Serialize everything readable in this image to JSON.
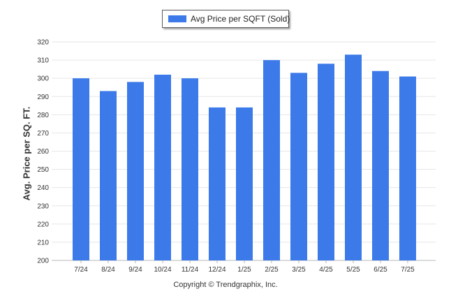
{
  "chart_data": {
    "type": "bar",
    "categories": [
      "7/24",
      "8/24",
      "9/24",
      "10/24",
      "11/24",
      "12/24",
      "1/25",
      "2/25",
      "3/25",
      "4/25",
      "5/25",
      "6/25",
      "7/25"
    ],
    "series": [
      {
        "name": "Avg Price per SQFT (Sold)",
        "values": [
          300,
          293,
          298,
          302,
          300,
          284,
          284,
          310,
          303,
          308,
          313,
          304,
          301
        ]
      }
    ],
    "ylabel": "Avg. Price per SQ. FT.",
    "ylim": [
      200,
      320
    ],
    "yticks": [
      200,
      210,
      220,
      230,
      240,
      250,
      260,
      270,
      280,
      290,
      300,
      310,
      320
    ],
    "grid": true,
    "legend": "top-center",
    "bar_color": "#3b7ae8"
  },
  "footer": {
    "copyright": "Copyright © Trendgraphix, Inc."
  }
}
